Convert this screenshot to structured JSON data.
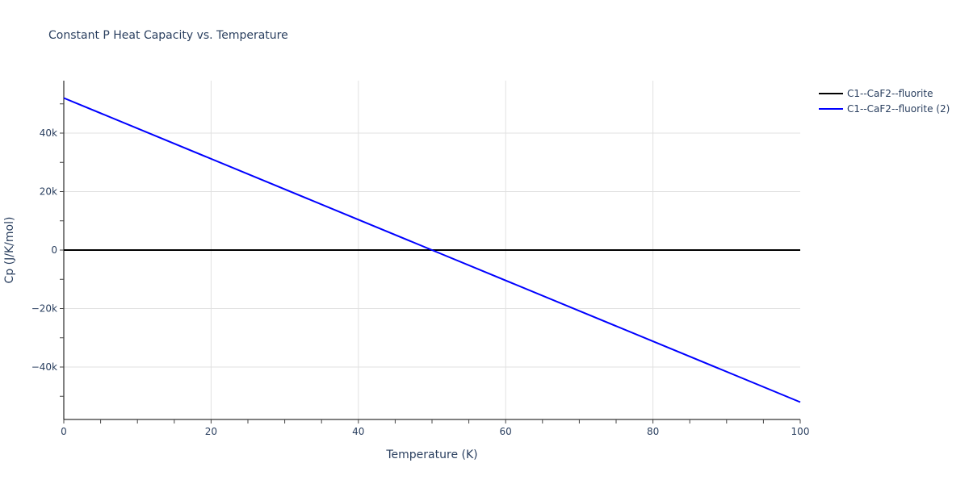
{
  "chart_data": {
    "type": "line",
    "title": "Constant P Heat Capacity vs. Temperature",
    "xlabel": "Temperature (K)",
    "ylabel": "Cp (J/K/mol)",
    "xlim": [
      0,
      100
    ],
    "ylim": [
      -57500,
      57500
    ],
    "x_ticks": [
      "0",
      "20",
      "40",
      "60",
      "80",
      "100"
    ],
    "y_ticks": [
      "−40k",
      "−20k",
      "0",
      "20k",
      "40k"
    ],
    "grid": true,
    "legend_position": "right-top",
    "series": [
      {
        "name": "C1--CaF2--fluorite",
        "color": "#000000",
        "x": [
          0,
          100
        ],
        "y": [
          0,
          0
        ]
      },
      {
        "name": "C1--CaF2--fluorite (2)",
        "color": "#0000ff",
        "x": [
          0,
          50,
          100
        ],
        "y": [
          52000,
          0,
          -52000
        ]
      }
    ]
  }
}
